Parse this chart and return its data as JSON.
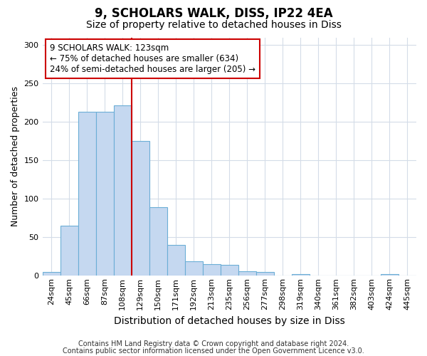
{
  "title": "9, SCHOLARS WALK, DISS, IP22 4EA",
  "subtitle": "Size of property relative to detached houses in Diss",
  "xlabel": "Distribution of detached houses by size in Diss",
  "ylabel": "Number of detached properties",
  "footnote1": "Contains HM Land Registry data © Crown copyright and database right 2024.",
  "footnote2": "Contains public sector information licensed under the Open Government Licence v3.0.",
  "categories": [
    "24sqm",
    "45sqm",
    "66sqm",
    "87sqm",
    "108sqm",
    "129sqm",
    "150sqm",
    "171sqm",
    "192sqm",
    "213sqm",
    "235sqm",
    "256sqm",
    "277sqm",
    "298sqm",
    "319sqm",
    "340sqm",
    "361sqm",
    "382sqm",
    "403sqm",
    "424sqm",
    "445sqm"
  ],
  "values": [
    5,
    65,
    213,
    213,
    222,
    175,
    89,
    40,
    19,
    15,
    14,
    6,
    5,
    0,
    2,
    0,
    0,
    0,
    0,
    2,
    0
  ],
  "bar_color": "#c5d8f0",
  "bar_edge_color": "#6baed6",
  "vline_color": "#cc0000",
  "vline_x": 5.0,
  "ylim": [
    0,
    310
  ],
  "yticks": [
    0,
    50,
    100,
    150,
    200,
    250,
    300
  ],
  "annotation_title": "9 SCHOLARS WALK: 123sqm",
  "annotation_line1": "← 75% of detached houses are smaller (634)",
  "annotation_line2": "24% of semi-detached houses are larger (205) →",
  "background_color": "#ffffff",
  "grid_color": "#d4dce8",
  "title_fontsize": 12,
  "subtitle_fontsize": 10,
  "xlabel_fontsize": 10,
  "ylabel_fontsize": 9,
  "tick_fontsize": 8,
  "footnote_fontsize": 7
}
